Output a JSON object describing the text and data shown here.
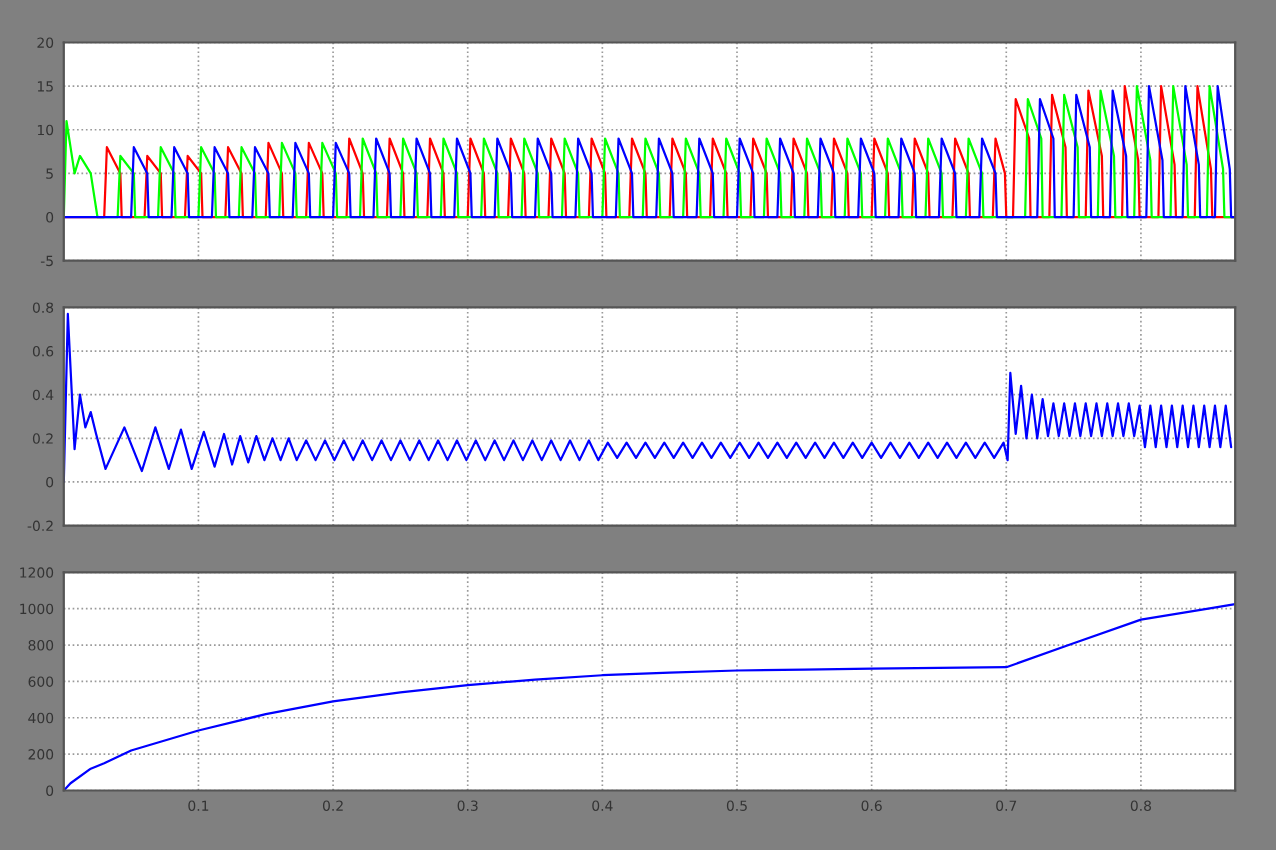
{
  "chart_data": [
    {
      "type": "line",
      "xlim": [
        0,
        0.87
      ],
      "ylim": [
        -5,
        20
      ],
      "xticks": [
        0.1,
        0.2,
        0.3,
        0.4,
        0.5,
        0.6,
        0.7,
        0.8
      ],
      "yticks": [
        -5,
        0,
        5,
        10,
        15,
        20
      ],
      "tick_labels": "y",
      "grid": true,
      "series": [
        {
          "color": "#ff0000",
          "x": [
            0,
            0.03,
            0.032,
            0.042,
            0.043,
            0.06,
            0.062,
            0.072,
            0.073,
            0.09,
            0.092,
            0.102,
            0.103,
            0.12,
            0.122,
            0.132,
            0.133,
            0.15,
            0.152,
            0.162,
            0.163,
            0.18,
            0.182,
            0.192,
            0.193,
            0.21,
            0.212,
            0.222,
            0.223,
            0.24,
            0.242,
            0.252,
            0.253,
            0.27,
            0.272,
            0.282,
            0.283,
            0.3,
            0.302,
            0.312,
            0.313,
            0.33,
            0.332,
            0.342,
            0.343,
            0.36,
            0.362,
            0.372,
            0.373,
            0.39,
            0.392,
            0.402,
            0.403,
            0.42,
            0.422,
            0.432,
            0.433,
            0.45,
            0.452,
            0.462,
            0.463,
            0.48,
            0.482,
            0.492,
            0.493,
            0.51,
            0.512,
            0.522,
            0.523,
            0.54,
            0.542,
            0.552,
            0.553,
            0.57,
            0.572,
            0.582,
            0.583,
            0.6,
            0.602,
            0.612,
            0.613,
            0.63,
            0.632,
            0.642,
            0.643,
            0.66,
            0.662,
            0.672,
            0.673,
            0.69,
            0.692,
            0.699,
            0.7,
            0.705,
            0.707,
            0.717,
            0.718,
            0.732,
            0.734,
            0.744,
            0.745,
            0.759,
            0.761,
            0.771,
            0.772,
            0.786,
            0.788,
            0.798,
            0.799,
            0.813,
            0.815,
            0.825,
            0.826,
            0.84,
            0.842,
            0.852,
            0.853,
            0.87
          ],
          "values": [
            0,
            0,
            8,
            5,
            0,
            0,
            7,
            5,
            0,
            0,
            7,
            5,
            0,
            0,
            8,
            5,
            0,
            0,
            8.5,
            5,
            0,
            0,
            8.5,
            5,
            0,
            0,
            9,
            5,
            0,
            0,
            9,
            5,
            0,
            0,
            9,
            5,
            0,
            0,
            9,
            5,
            0,
            0,
            9,
            5,
            0,
            0,
            9,
            5,
            0,
            0,
            9,
            5,
            0,
            0,
            9,
            5,
            0,
            0,
            9,
            5,
            0,
            0,
            9,
            5,
            0,
            0,
            9,
            5,
            0,
            0,
            9,
            5,
            0,
            0,
            9,
            5,
            0,
            0,
            9,
            5,
            0,
            0,
            9,
            5,
            0,
            0,
            9,
            5,
            0,
            0,
            9,
            5,
            0,
            0,
            13.5,
            9,
            0,
            0,
            14,
            8,
            0,
            0,
            14.5,
            7,
            0,
            0,
            15,
            6.5,
            0,
            0,
            15,
            6,
            0,
            0,
            15,
            5.5,
            0,
            0
          ]
        },
        {
          "color": "#00ff00",
          "x": [
            0,
            0.002,
            0.008,
            0.012,
            0.02,
            0.025,
            0.04,
            0.042,
            0.052,
            0.053,
            0.07,
            0.072,
            0.082,
            0.083,
            0.1,
            0.102,
            0.112,
            0.113,
            0.13,
            0.132,
            0.142,
            0.143,
            0.16,
            0.162,
            0.172,
            0.173,
            0.19,
            0.192,
            0.202,
            0.203,
            0.22,
            0.222,
            0.232,
            0.233,
            0.25,
            0.252,
            0.262,
            0.263,
            0.28,
            0.282,
            0.292,
            0.293,
            0.31,
            0.312,
            0.322,
            0.323,
            0.34,
            0.342,
            0.352,
            0.353,
            0.37,
            0.372,
            0.382,
            0.383,
            0.4,
            0.402,
            0.412,
            0.413,
            0.43,
            0.432,
            0.442,
            0.443,
            0.46,
            0.462,
            0.472,
            0.473,
            0.49,
            0.492,
            0.502,
            0.503,
            0.52,
            0.522,
            0.532,
            0.533,
            0.55,
            0.552,
            0.562,
            0.563,
            0.58,
            0.582,
            0.592,
            0.593,
            0.61,
            0.612,
            0.622,
            0.623,
            0.64,
            0.642,
            0.652,
            0.653,
            0.67,
            0.672,
            0.682,
            0.683,
            0.714,
            0.716,
            0.726,
            0.727,
            0.741,
            0.743,
            0.753,
            0.754,
            0.768,
            0.77,
            0.78,
            0.781,
            0.795,
            0.797,
            0.807,
            0.808,
            0.822,
            0.824,
            0.834,
            0.835,
            0.849,
            0.851,
            0.861,
            0.862,
            0.87
          ],
          "values": [
            0,
            11,
            5,
            7,
            5,
            0,
            0,
            7,
            5,
            0,
            0,
            8,
            5,
            0,
            0,
            8,
            5,
            0,
            0,
            8,
            5,
            0,
            0,
            8.5,
            5,
            0,
            0,
            8.5,
            5,
            0,
            0,
            9,
            5,
            0,
            0,
            9,
            5,
            0,
            0,
            9,
            5,
            0,
            0,
            9,
            5,
            0,
            0,
            9,
            5,
            0,
            0,
            9,
            5,
            0,
            0,
            9,
            5,
            0,
            0,
            9,
            5,
            0,
            0,
            9,
            5,
            0,
            0,
            9,
            5,
            0,
            0,
            9,
            5,
            0,
            0,
            9,
            5,
            0,
            0,
            9,
            5,
            0,
            0,
            9,
            5,
            0,
            0,
            9,
            5,
            0,
            0,
            9,
            5,
            0,
            0,
            13.5,
            9,
            0,
            0,
            14,
            8,
            0,
            0,
            14.5,
            7,
            0,
            0,
            15,
            6.5,
            0,
            0,
            15,
            6,
            0,
            0,
            15,
            5.5,
            0,
            0
          ]
        },
        {
          "color": "#0000ff",
          "x": [
            0,
            0.05,
            0.052,
            0.062,
            0.063,
            0.08,
            0.082,
            0.092,
            0.093,
            0.11,
            0.112,
            0.122,
            0.123,
            0.14,
            0.142,
            0.152,
            0.153,
            0.17,
            0.172,
            0.182,
            0.183,
            0.2,
            0.202,
            0.212,
            0.213,
            0.23,
            0.232,
            0.242,
            0.243,
            0.26,
            0.262,
            0.272,
            0.273,
            0.29,
            0.292,
            0.302,
            0.303,
            0.32,
            0.322,
            0.332,
            0.333,
            0.35,
            0.352,
            0.362,
            0.363,
            0.38,
            0.382,
            0.392,
            0.393,
            0.41,
            0.412,
            0.422,
            0.423,
            0.44,
            0.442,
            0.452,
            0.453,
            0.47,
            0.472,
            0.482,
            0.483,
            0.5,
            0.502,
            0.512,
            0.513,
            0.53,
            0.532,
            0.542,
            0.543,
            0.56,
            0.562,
            0.572,
            0.573,
            0.59,
            0.592,
            0.602,
            0.603,
            0.62,
            0.622,
            0.632,
            0.633,
            0.65,
            0.652,
            0.662,
            0.663,
            0.68,
            0.682,
            0.692,
            0.693,
            0.723,
            0.725,
            0.735,
            0.736,
            0.75,
            0.752,
            0.762,
            0.763,
            0.777,
            0.779,
            0.789,
            0.79,
            0.804,
            0.806,
            0.816,
            0.817,
            0.831,
            0.833,
            0.843,
            0.844,
            0.855,
            0.857,
            0.866,
            0.867,
            0.87
          ],
          "values": [
            0,
            0,
            8,
            5,
            0,
            0,
            8,
            5,
            0,
            0,
            8,
            5,
            0,
            0,
            8,
            5,
            0,
            0,
            8.5,
            5,
            0,
            0,
            8.5,
            5,
            0,
            0,
            9,
            5,
            0,
            0,
            9,
            5,
            0,
            0,
            9,
            5,
            0,
            0,
            9,
            5,
            0,
            0,
            9,
            5,
            0,
            0,
            9,
            5,
            0,
            0,
            9,
            5,
            0,
            0,
            9,
            5,
            0,
            0,
            9,
            5,
            0,
            0,
            9,
            5,
            0,
            0,
            9,
            5,
            0,
            0,
            9,
            5,
            0,
            0,
            9,
            5,
            0,
            0,
            9,
            5,
            0,
            0,
            9,
            5,
            0,
            0,
            9,
            5,
            0,
            0,
            13.5,
            9,
            0,
            0,
            14,
            8,
            0,
            0,
            14.5,
            7,
            0,
            0,
            15,
            6.5,
            0,
            0,
            15,
            6,
            0,
            0,
            15,
            5.5,
            0,
            0
          ]
        }
      ]
    },
    {
      "type": "line",
      "xlim": [
        0,
        0.87
      ],
      "ylim": [
        -0.2,
        0.8
      ],
      "xticks": [
        0.1,
        0.2,
        0.3,
        0.4,
        0.5,
        0.6,
        0.7,
        0.8
      ],
      "yticks": [
        -0.2,
        0,
        0.2,
        0.4,
        0.6,
        0.8
      ],
      "tick_labels": "y",
      "grid": true,
      "series": [
        {
          "color": "#0000ff",
          "x": [
            0,
            0.003,
            0.008,
            0.012,
            0.016,
            0.02,
            0.024,
            0.031,
            0.045,
            0.058,
            0.068,
            0.078,
            0.087,
            0.095,
            0.104,
            0.112,
            0.119,
            0.125,
            0.131,
            0.137,
            0.143,
            0.149,
            0.155,
            0.161,
            0.167,
            0.173,
            0.18,
            0.187,
            0.194,
            0.201,
            0.208,
            0.215,
            0.222,
            0.229,
            0.236,
            0.243,
            0.25,
            0.257,
            0.264,
            0.271,
            0.278,
            0.285,
            0.292,
            0.299,
            0.306,
            0.313,
            0.32,
            0.327,
            0.334,
            0.341,
            0.348,
            0.355,
            0.362,
            0.369,
            0.376,
            0.383,
            0.39,
            0.397,
            0.404,
            0.411,
            0.418,
            0.425,
            0.432,
            0.439,
            0.446,
            0.453,
            0.46,
            0.467,
            0.474,
            0.481,
            0.488,
            0.495,
            0.502,
            0.509,
            0.516,
            0.523,
            0.53,
            0.537,
            0.544,
            0.551,
            0.558,
            0.565,
            0.572,
            0.579,
            0.586,
            0.593,
            0.6,
            0.607,
            0.614,
            0.621,
            0.628,
            0.635,
            0.642,
            0.649,
            0.656,
            0.663,
            0.67,
            0.677,
            0.684,
            0.691,
            0.698,
            0.701,
            0.703,
            0.707,
            0.711,
            0.715,
            0.719,
            0.723,
            0.727,
            0.731,
            0.735,
            0.739,
            0.743,
            0.747,
            0.751,
            0.755,
            0.759,
            0.763,
            0.767,
            0.771,
            0.775,
            0.779,
            0.783,
            0.787,
            0.791,
            0.795,
            0.799,
            0.803,
            0.807,
            0.811,
            0.815,
            0.819,
            0.823,
            0.827,
            0.831,
            0.835,
            0.839,
            0.843,
            0.847,
            0.851,
            0.855,
            0.859,
            0.863,
            0.867
          ],
          "values": [
            0,
            0.77,
            0.15,
            0.4,
            0.25,
            0.32,
            0.22,
            0.06,
            0.25,
            0.05,
            0.25,
            0.06,
            0.24,
            0.06,
            0.23,
            0.07,
            0.22,
            0.08,
            0.21,
            0.09,
            0.21,
            0.1,
            0.2,
            0.1,
            0.2,
            0.1,
            0.19,
            0.1,
            0.19,
            0.1,
            0.19,
            0.1,
            0.19,
            0.1,
            0.19,
            0.1,
            0.19,
            0.1,
            0.19,
            0.1,
            0.19,
            0.1,
            0.19,
            0.1,
            0.19,
            0.1,
            0.19,
            0.1,
            0.19,
            0.1,
            0.19,
            0.1,
            0.19,
            0.1,
            0.19,
            0.1,
            0.19,
            0.1,
            0.18,
            0.11,
            0.18,
            0.11,
            0.18,
            0.11,
            0.18,
            0.11,
            0.18,
            0.11,
            0.18,
            0.11,
            0.18,
            0.11,
            0.18,
            0.11,
            0.18,
            0.11,
            0.18,
            0.11,
            0.18,
            0.11,
            0.18,
            0.11,
            0.18,
            0.11,
            0.18,
            0.11,
            0.18,
            0.11,
            0.18,
            0.11,
            0.18,
            0.11,
            0.18,
            0.11,
            0.18,
            0.11,
            0.18,
            0.11,
            0.18,
            0.11,
            0.18,
            0.1,
            0.5,
            0.22,
            0.44,
            0.2,
            0.4,
            0.2,
            0.38,
            0.21,
            0.36,
            0.21,
            0.36,
            0.21,
            0.36,
            0.21,
            0.36,
            0.21,
            0.36,
            0.21,
            0.36,
            0.21,
            0.36,
            0.21,
            0.36,
            0.21,
            0.35,
            0.16,
            0.35,
            0.16,
            0.35,
            0.16,
            0.35,
            0.16,
            0.35,
            0.16,
            0.35,
            0.16,
            0.35,
            0.16,
            0.35,
            0.16,
            0.35,
            0.16
          ]
        }
      ]
    },
    {
      "type": "line",
      "xlim": [
        0,
        0.87
      ],
      "ylim": [
        0,
        1200
      ],
      "xticks": [
        0.1,
        0.2,
        0.3,
        0.4,
        0.5,
        0.6,
        0.7,
        0.8
      ],
      "yticks": [
        0,
        200,
        400,
        600,
        800,
        1000,
        1200
      ],
      "grid": true,
      "series": [
        {
          "color": "#0000ff",
          "x": [
            0,
            0.005,
            0.02,
            0.03,
            0.05,
            0.1,
            0.15,
            0.2,
            0.25,
            0.3,
            0.35,
            0.4,
            0.45,
            0.5,
            0.55,
            0.6,
            0.65,
            0.7,
            0.75,
            0.8,
            0.85,
            0.87
          ],
          "values": [
            0,
            40,
            120,
            150,
            220,
            330,
            420,
            490,
            540,
            580,
            610,
            634,
            648,
            660,
            665,
            670,
            675,
            678,
            810,
            940,
            1000,
            1025
          ]
        }
      ]
    }
  ]
}
